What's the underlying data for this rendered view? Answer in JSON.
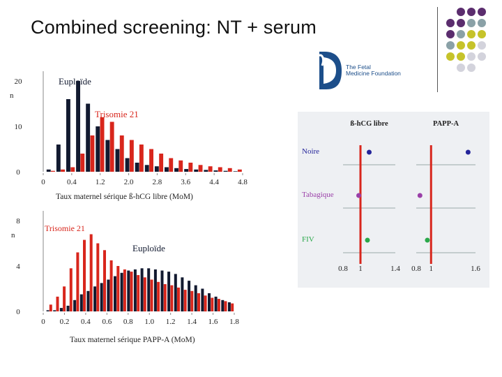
{
  "slide": {
    "title": "Combined screening: NT + serum"
  },
  "logo": {
    "line1": "The Fetal",
    "line2": "Medicine Foundation"
  },
  "decor": {
    "dot_colors": [
      "#5b2d6e",
      "#8aa1a7",
      "#c6c32a",
      "#d3d3dc"
    ]
  },
  "chart_data": [
    {
      "type": "bar",
      "id": "hcg",
      "xlabel": "Taux maternel sérique ß-hCG libre (MoM)",
      "ylabel": "n",
      "ylim": [
        0,
        20
      ],
      "yticks": [
        "0",
        "10",
        "20"
      ],
      "xticks": [
        "0",
        "0.4",
        "1.2",
        "2.0",
        "2.8",
        "3.6",
        "4.4",
        "4.8"
      ],
      "series": [
        {
          "name": "Euploïde",
          "color": "#121a30",
          "values": [
            0.5,
            6,
            16,
            20,
            15,
            10,
            7,
            5,
            3,
            2,
            1.5,
            1.2,
            1,
            0.8,
            0.6,
            0.5,
            0.4,
            0.3,
            0.2,
            0.1
          ]
        },
        {
          "name": "Trisomie 21",
          "color": "#d8261c",
          "values": [
            0.2,
            0.5,
            1,
            4,
            8,
            12,
            11,
            8,
            7,
            6,
            5,
            4,
            3,
            2.5,
            2,
            1.5,
            1.2,
            1,
            0.8,
            0.5
          ]
        }
      ]
    },
    {
      "type": "bar",
      "id": "pappa",
      "xlabel": "Taux maternel sérique PAPP-A (MoM)",
      "ylabel": "n",
      "ylim": [
        0,
        8
      ],
      "yticks": [
        "0",
        "4",
        "8"
      ],
      "xticks": [
        "0",
        "0.2",
        "0.4",
        "0.6",
        "0.8",
        "1.0",
        "1.2",
        "1.4",
        "1.6",
        "1.8"
      ],
      "series": [
        {
          "name": "Euploïde",
          "color": "#121a30",
          "values": [
            0.1,
            0.1,
            0.3,
            0.5,
            1,
            1.5,
            1.8,
            2.2,
            2.5,
            2.8,
            3.1,
            3.4,
            3.6,
            3.7,
            3.8,
            3.8,
            3.7,
            3.6,
            3.5,
            3.3,
            3.0,
            2.7,
            2.3,
            2.0,
            1.6,
            1.3,
            1.0,
            0.8
          ]
        },
        {
          "name": "Trisomie 21",
          "color": "#d8261c",
          "values": [
            0.6,
            1.3,
            2.2,
            3.8,
            5.2,
            6.3,
            6.8,
            6.0,
            5.4,
            4.5,
            4.0,
            3.7,
            3.5,
            3.2,
            3.0,
            2.8,
            2.6,
            2.4,
            2.3,
            2.1,
            1.9,
            1.8,
            1.6,
            1.4,
            1.2,
            1.1,
            0.9,
            0.7
          ]
        }
      ]
    },
    {
      "type": "scatter",
      "id": "effects",
      "panels": [
        {
          "title": "ß-hCG libre",
          "xticks": [
            "0.8",
            "1",
            "1.4"
          ],
          "xlim": [
            0.8,
            1.4
          ],
          "ref": 1,
          "points": [
            1.1,
            0.98,
            1.08
          ]
        },
        {
          "title": "PAPP-A",
          "xticks": [
            "0.8",
            "1",
            "1.6"
          ],
          "xlim": [
            0.8,
            1.6
          ],
          "ref": 1,
          "points": [
            1.5,
            0.85,
            0.95
          ]
        }
      ],
      "rows": [
        {
          "label": "Noire",
          "color": "#24249a"
        },
        {
          "label": "Tabagique",
          "color": "#9a3fa8"
        },
        {
          "label": "FIV",
          "color": "#2aa84a"
        }
      ]
    }
  ]
}
